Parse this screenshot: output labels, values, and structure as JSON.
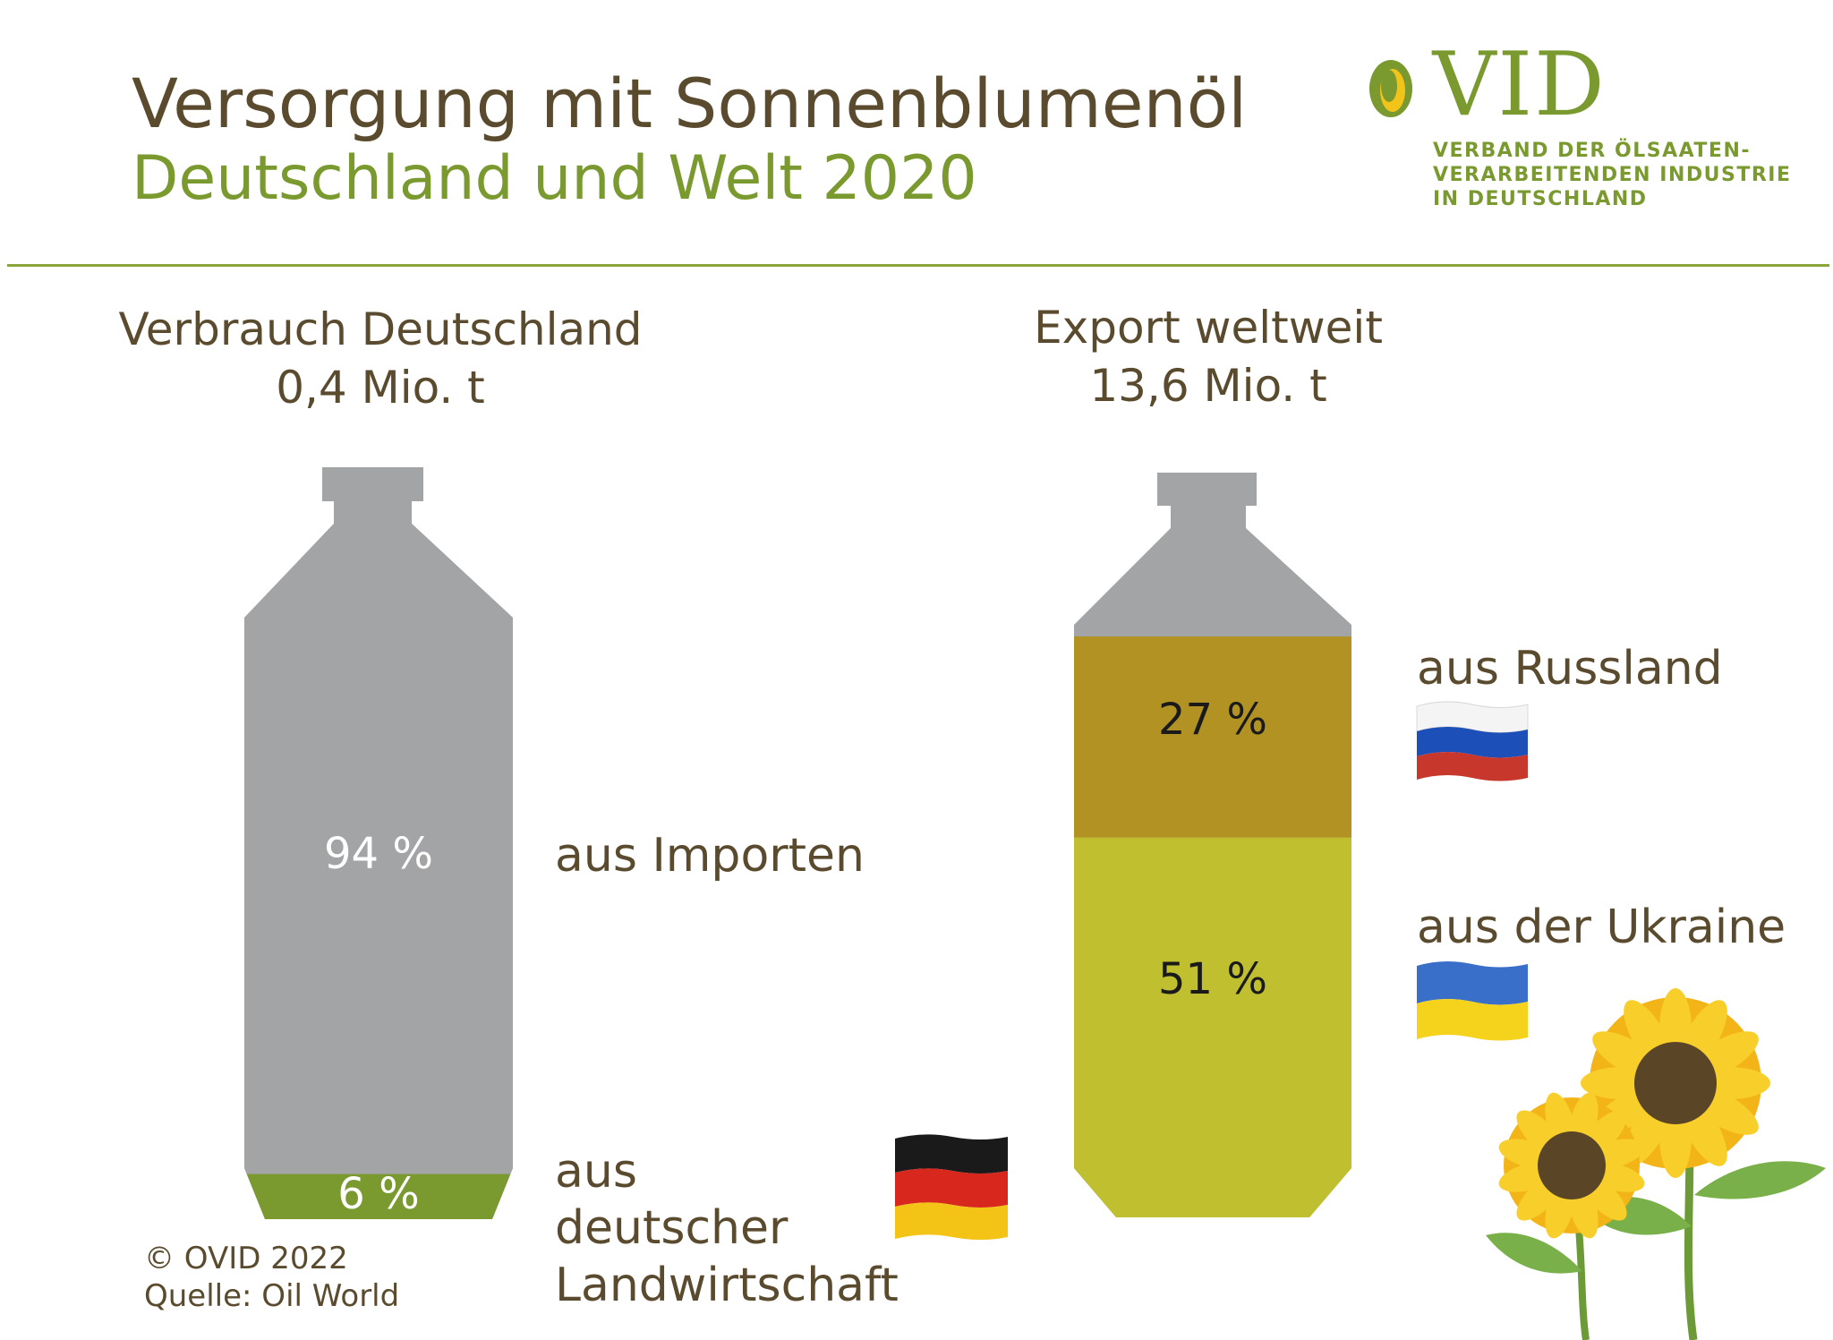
{
  "header": {
    "title": "Versorgung mit Sonnenblumenöl",
    "subtitle": "Deutschland und Welt 2020"
  },
  "logo": {
    "wordmark": "OVID",
    "lines": [
      "VERBAND DER ÖLSAATEN-",
      "VERARBEITENDEN INDUSTRIE",
      "IN DEUTSCHLAND"
    ],
    "color": "#7a9a30"
  },
  "footer": {
    "copyright": "© OVID 2022",
    "source": "Quelle: Oil World"
  },
  "colors": {
    "bottle_gray": "#a3a4a6",
    "green": "#7a9a30",
    "russia_ochre": "#b29222",
    "ukraine_yellow": "#bfbf2f",
    "text_brown": "#5a4a2e"
  },
  "icons": [
    "germany-flag-icon",
    "russia-flag-icon",
    "ukraine-flag-icon",
    "sunflower-icon"
  ],
  "chart_data": [
    {
      "type": "bar",
      "title": "Verbrauch Deutschland",
      "total": "0,4 Mio. t",
      "stacked": true,
      "segments": [
        {
          "name": "aus Importen",
          "value": 94,
          "label": "94 %",
          "color": "#a3a4a6"
        },
        {
          "name": "aus deutscher Landwirtschaft",
          "value": 6,
          "label": "6 %",
          "color": "#7a9a30",
          "flag": "germany-flag-icon"
        }
      ]
    },
    {
      "type": "bar",
      "title": "Export weltweit",
      "total": "13,6 Mio. t",
      "stacked": true,
      "segments": [
        {
          "name": "aus Russland",
          "value": 27,
          "label": "27 %",
          "color": "#b29222",
          "flag": "russia-flag-icon"
        },
        {
          "name": "aus der Ukraine",
          "value": 51,
          "label": "51 %",
          "color": "#bfbf2f",
          "flag": "ukraine-flag-icon"
        }
      ]
    }
  ]
}
